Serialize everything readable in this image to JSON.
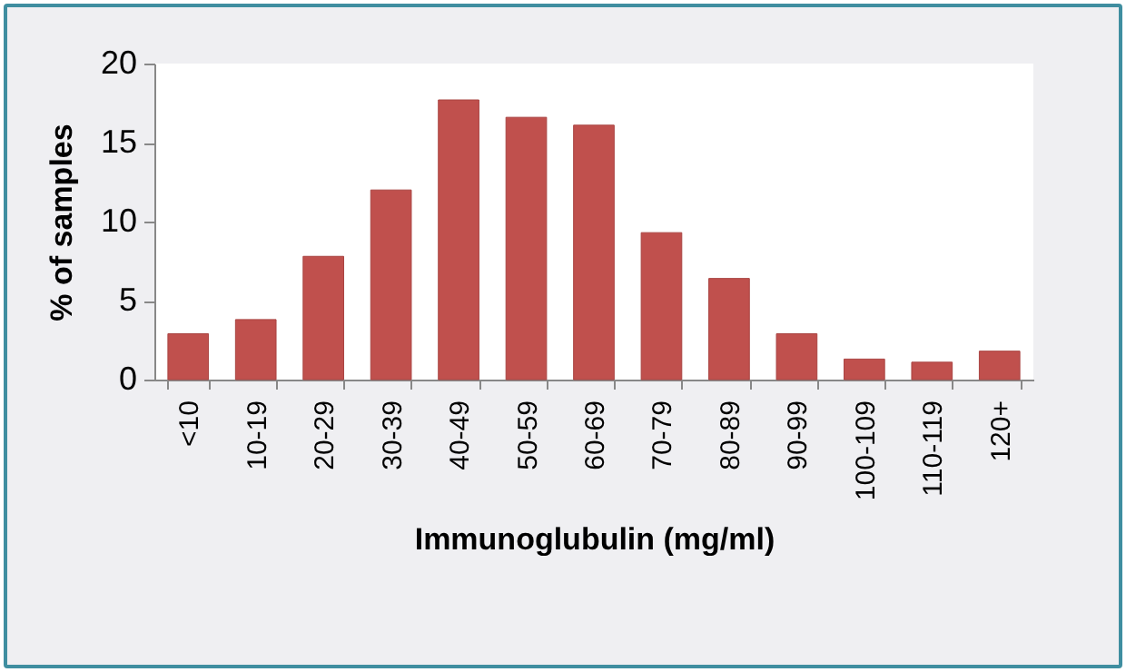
{
  "chart_data": {
    "type": "bar",
    "xlabel": "Immunoglubulin (mg/ml)",
    "ylabel": "% of samples",
    "categories": [
      "<10",
      "10-19",
      "20-29",
      "30-39",
      "40-49",
      "50-59",
      "60-69",
      "70-79",
      "80-89",
      "90-99",
      "100-109",
      "110-119",
      "120+"
    ],
    "values": [
      2.9,
      3.8,
      7.8,
      12.0,
      17.7,
      16.6,
      16.1,
      9.3,
      6.4,
      2.9,
      1.3,
      1.1,
      1.8
    ],
    "color": "#c0504d",
    "ylim": [
      0,
      20
    ],
    "yticks": [
      0,
      5,
      10,
      15,
      20
    ],
    "grid": false
  }
}
